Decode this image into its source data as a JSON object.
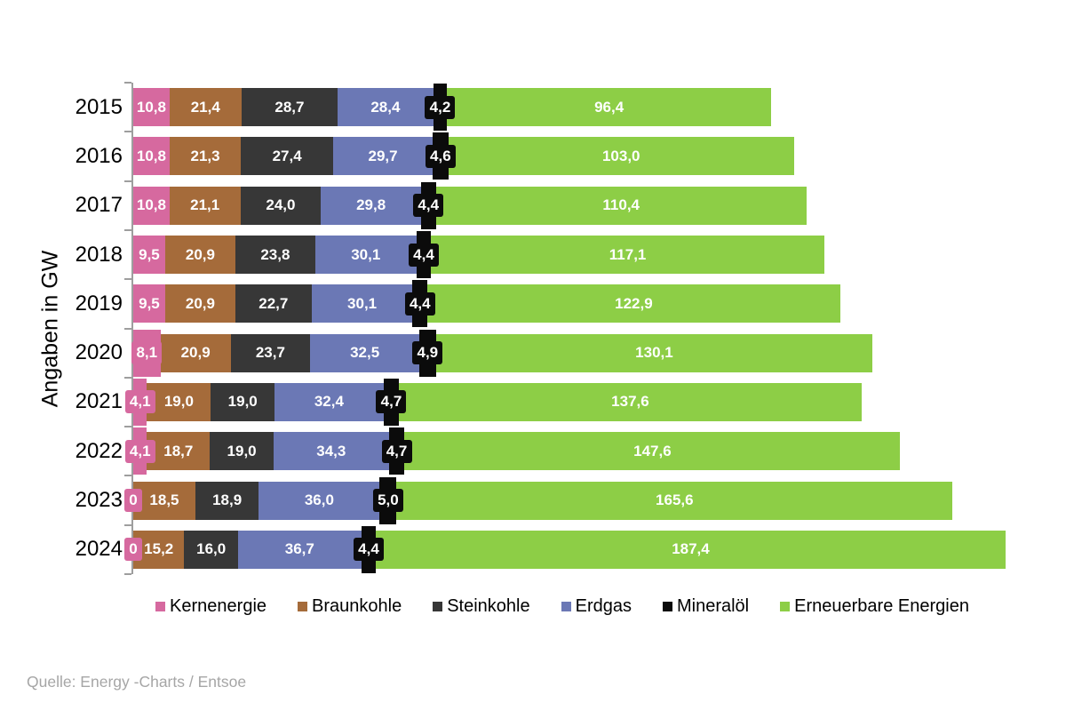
{
  "chart_data": {
    "type": "bar",
    "subtype": "horizontal-stacked",
    "unit_label": "Angaben in GW",
    "categories": [
      "2015",
      "2016",
      "2017",
      "2018",
      "2019",
      "2020",
      "2021",
      "2022",
      "2023",
      "2024"
    ],
    "series": [
      {
        "name": "Kernenergie",
        "color": "#d6699f",
        "values": [
          10.8,
          10.8,
          10.8,
          9.5,
          9.5,
          8.1,
          4.1,
          4.1,
          0,
          0
        ]
      },
      {
        "name": "Braunkohle",
        "color": "#a56b3a",
        "values": [
          21.4,
          21.3,
          21.1,
          20.9,
          20.9,
          20.9,
          19.0,
          18.7,
          18.5,
          15.2
        ]
      },
      {
        "name": "Steinkohle",
        "color": "#373737",
        "values": [
          28.7,
          27.4,
          24.0,
          23.8,
          22.7,
          23.7,
          19.0,
          19.0,
          18.9,
          16.0
        ]
      },
      {
        "name": "Erdgas",
        "color": "#6b78b5",
        "values": [
          28.4,
          29.7,
          29.8,
          30.1,
          30.1,
          32.5,
          32.4,
          34.3,
          36.0,
          36.7
        ]
      },
      {
        "name": "Mineralöl",
        "color": "#0b0b0b",
        "values": [
          4.2,
          4.6,
          4.4,
          4.4,
          4.4,
          4.9,
          4.7,
          4.7,
          5.0,
          4.4
        ]
      },
      {
        "name": "Erneuerbare Energien",
        "color": "#8dce46",
        "values": [
          96.4,
          103.0,
          110.4,
          117.1,
          122.9,
          130.1,
          137.6,
          147.6,
          165.6,
          187.4
        ]
      }
    ],
    "value_label_style": "white-bold, German decimal comma, zero shown as 0",
    "legend_position": "bottom",
    "grid": false,
    "axis_color": "#9e9e9e",
    "source": "Quelle: Energy -Charts / Entsoe"
  }
}
